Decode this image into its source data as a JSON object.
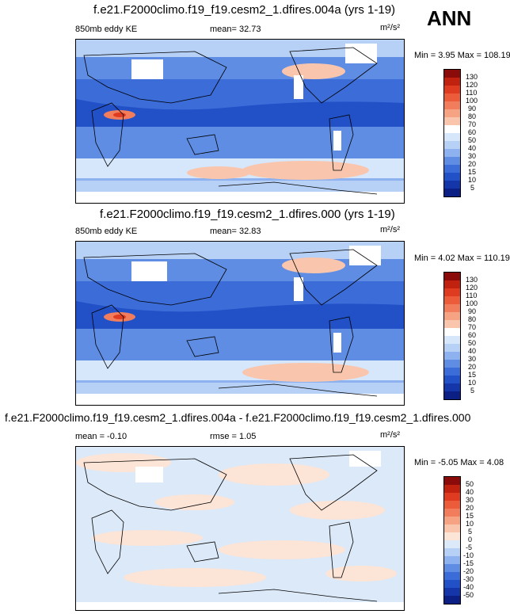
{
  "season": "ANN",
  "chart_data": [
    {
      "type": "heatmap",
      "title": "f.e21.F2000climo.f19_f19.cesm2_1.dfires.004a (yrs 1-19)",
      "left_label": "850mb eddy KE",
      "center_label": "mean=  32.73",
      "units": "m²/s²",
      "minmax": "Min =   3.95 Max = 108.19",
      "min": 3.95,
      "max": 108.19,
      "mean": 32.73,
      "colorbar_levels": [
        "130",
        "120",
        "110",
        "100",
        "90",
        "80",
        "70",
        "60",
        "50",
        "40",
        "30",
        "20",
        "15",
        "10",
        "5"
      ],
      "colorbar_colors": [
        "#8b0a0a",
        "#c0220f",
        "#df3b20",
        "#ec5b3a",
        "#f27d5c",
        "#f6a384",
        "#f9c6ad",
        "#ffffff",
        "#d6e6fb",
        "#b7d0f6",
        "#8db2ef",
        "#5f8de3",
        "#3b6cd8",
        "#2150c7",
        "#1436a8",
        "#0c1f85"
      ]
    },
    {
      "type": "heatmap",
      "title": "f.e21.F2000climo.f19_f19.cesm2_1.dfires.000 (yrs 1-19)",
      "left_label": "850mb eddy KE",
      "center_label": "mean=  32.83",
      "units": "m²/s²",
      "minmax": "Min =   4.02 Max = 110.19",
      "min": 4.02,
      "max": 110.19,
      "mean": 32.83,
      "colorbar_levels": [
        "130",
        "120",
        "110",
        "100",
        "90",
        "80",
        "70",
        "60",
        "50",
        "40",
        "30",
        "20",
        "15",
        "10",
        "5"
      ],
      "colorbar_colors": [
        "#8b0a0a",
        "#c0220f",
        "#df3b20",
        "#ec5b3a",
        "#f27d5c",
        "#f6a384",
        "#f9c6ad",
        "#ffffff",
        "#d6e6fb",
        "#b7d0f6",
        "#8db2ef",
        "#5f8de3",
        "#3b6cd8",
        "#2150c7",
        "#1436a8",
        "#0c1f85"
      ]
    },
    {
      "type": "heatmap",
      "title": "f.e21.F2000climo.f19_f19.cesm2_1.dfires.004a - f.e21.F2000climo.f19_f19.cesm2_1.dfires.000",
      "left_label": "mean =  -0.10",
      "center_label": "rmse =   1.05",
      "units": "m²/s²",
      "minmax": "Min =  -5.05 Max =   4.08",
      "min": -5.05,
      "max": 4.08,
      "mean": -0.1,
      "rmse": 1.05,
      "colorbar_levels": [
        "50",
        "40",
        "30",
        "20",
        "15",
        "10",
        "5",
        "0",
        "-5",
        "-10",
        "-15",
        "-20",
        "-30",
        "-40",
        "-50"
      ],
      "colorbar_colors": [
        "#8b0a0a",
        "#c0220f",
        "#df3b20",
        "#ec5b3a",
        "#f27d5c",
        "#f6a384",
        "#f9c6ad",
        "#fce4d6",
        "#dce9f8",
        "#b7d0f6",
        "#8db2ef",
        "#5f8de3",
        "#3b6cd8",
        "#2150c7",
        "#1436a8",
        "#0c1f85"
      ]
    }
  ]
}
